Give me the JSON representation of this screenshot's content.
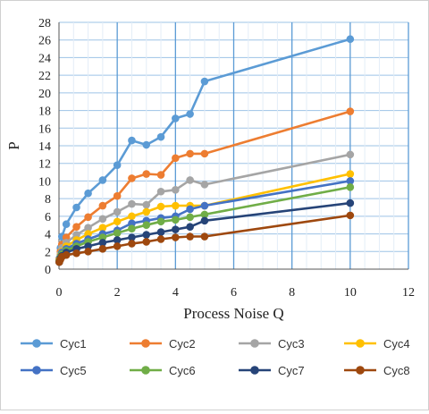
{
  "chart_data": {
    "type": "line",
    "xlabel": "Process Noise Q",
    "ylabel": "P",
    "xlim": [
      0,
      12
    ],
    "ylim": [
      0,
      28
    ],
    "xticks": [
      0,
      2,
      4,
      6,
      8,
      10,
      12
    ],
    "yticks": [
      0,
      2,
      4,
      6,
      8,
      10,
      12,
      14,
      16,
      18,
      20,
      22,
      24,
      26,
      28
    ],
    "grid": true,
    "legend_position": "bottom",
    "x": [
      0.01,
      0.05,
      0.1,
      0.25,
      0.6,
      1,
      1.5,
      2,
      2.5,
      3,
      3.5,
      4,
      4.5,
      5,
      10
    ],
    "series": [
      {
        "name": "Cyc1",
        "color": "#5B9BD5",
        "values": [
          1.2,
          2.4,
          3.7,
          5.1,
          7.0,
          8.6,
          10.1,
          11.8,
          14.6,
          14.1,
          15.0,
          17.1,
          17.6,
          21.3,
          26.1
        ]
      },
      {
        "name": "Cyc2",
        "color": "#ED7D31",
        "values": [
          1.1,
          2.0,
          2.8,
          3.6,
          4.8,
          5.9,
          7.2,
          8.3,
          10.3,
          10.8,
          10.7,
          12.6,
          13.1,
          13.1,
          17.9
        ]
      },
      {
        "name": "Cyc3",
        "color": "#A5A5A5",
        "values": [
          1.0,
          1.7,
          2.4,
          3.0,
          3.9,
          4.7,
          5.7,
          6.5,
          7.4,
          7.3,
          8.8,
          9.0,
          10.1,
          9.6,
          13.0
        ]
      },
      {
        "name": "Cyc4",
        "color": "#FFC000",
        "values": [
          1.0,
          1.5,
          2.0,
          2.6,
          3.3,
          4.0,
          4.7,
          5.4,
          6.0,
          6.5,
          7.1,
          7.2,
          7.2,
          7.2,
          10.8
        ]
      },
      {
        "name": "Cyc5",
        "color": "#4472C4",
        "values": [
          0.9,
          1.4,
          1.9,
          2.3,
          2.9,
          3.4,
          4.0,
          4.4,
          5.2,
          5.5,
          5.8,
          6.0,
          6.8,
          7.2,
          10.0
        ]
      },
      {
        "name": "Cyc6",
        "color": "#70AD47",
        "values": [
          0.9,
          1.3,
          1.7,
          2.1,
          2.6,
          3.1,
          3.6,
          4.1,
          4.6,
          5.0,
          5.4,
          5.6,
          5.9,
          6.2,
          9.3
        ]
      },
      {
        "name": "Cyc7",
        "color": "#264478",
        "values": [
          0.8,
          1.2,
          1.5,
          1.9,
          2.3,
          2.6,
          3.0,
          3.3,
          3.6,
          3.9,
          4.2,
          4.5,
          4.8,
          5.5,
          7.5
        ]
      },
      {
        "name": "Cyc8",
        "color": "#9E480E",
        "values": [
          0.8,
          1.1,
          1.4,
          1.6,
          1.8,
          2.0,
          2.3,
          2.6,
          2.9,
          3.1,
          3.4,
          3.6,
          3.7,
          3.7,
          6.1
        ]
      }
    ]
  }
}
